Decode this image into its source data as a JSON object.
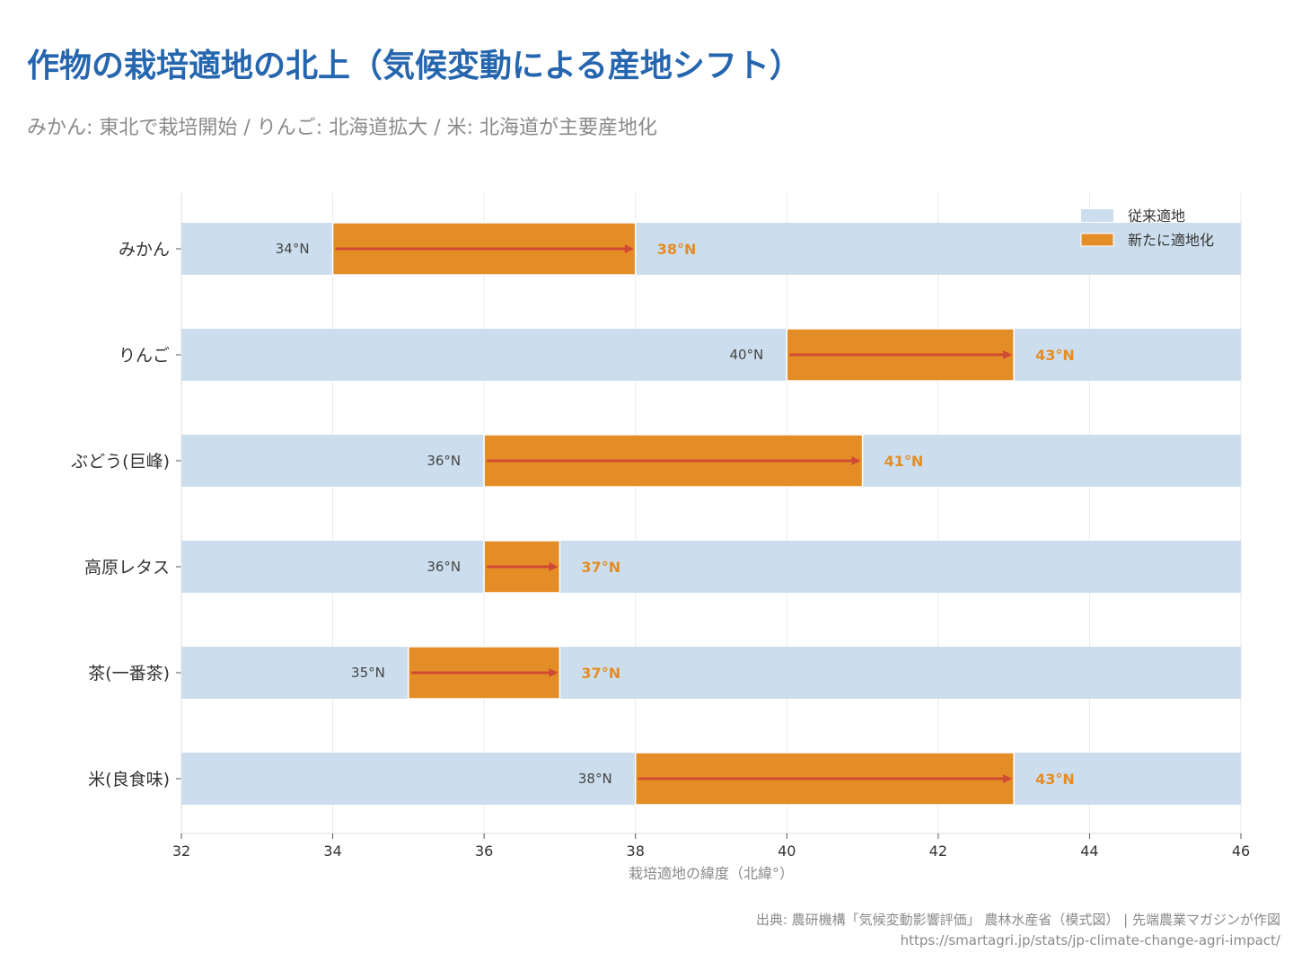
{
  "title": "作物の栽培適地の北上（気候変動による産地シフト）",
  "subtitle": "みかん: 東北で栽培開始 / りんご: 北海道拡大 / 米: 北海道が主要産地化",
  "source": "出典: 農研機構「気候変動影響評価」 農林水産省（模式図） | 先端農業マガジンが作図",
  "url": "https://smartagri.jp/stats/jp-climate-change-agri-impact/",
  "colors": {
    "conventional": "#ccdeed",
    "new_area": "#e48d26",
    "arrow": "#cf4a33",
    "new_label": "#e48d26"
  },
  "chart_data": {
    "type": "bar",
    "orientation": "horizontal",
    "xlabel": "栽培適地の緯度（北緯°）",
    "ylabel": "",
    "xlim": [
      32,
      46
    ],
    "xticks": [
      32,
      34,
      36,
      38,
      40,
      42,
      44,
      46
    ],
    "grid": "vertical",
    "legend": {
      "placement": "top-right",
      "items": [
        {
          "label": "従来適地",
          "color": "#ccdeed"
        },
        {
          "label": "新たに適地化",
          "color": "#e48d26"
        }
      ]
    },
    "categories": [
      "みかん",
      "りんご",
      "ぶどう(巨峰)",
      "高原レタス",
      "茶(一番茶)",
      "米(良食味)"
    ],
    "series": [
      {
        "name": "従来適地",
        "values": [
          34,
          40,
          36,
          36,
          35,
          38
        ]
      },
      {
        "name": "新たに適地化",
        "values": [
          38,
          43,
          41,
          37,
          37,
          43
        ]
      }
    ],
    "data_labels": [
      {
        "from": "34°N",
        "to": "38°N"
      },
      {
        "from": "40°N",
        "to": "43°N"
      },
      {
        "from": "36°N",
        "to": "41°N"
      },
      {
        "from": "36°N",
        "to": "37°N"
      },
      {
        "from": "35°N",
        "to": "37°N"
      },
      {
        "from": "38°N",
        "to": "43°N"
      }
    ]
  }
}
